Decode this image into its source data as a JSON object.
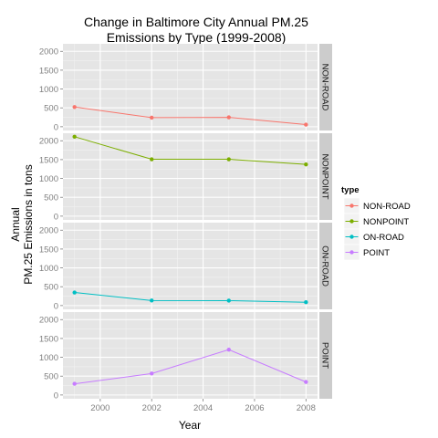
{
  "chart_data": {
    "type": "line",
    "title_line1": "Change in Baltimore City Annual PM.25",
    "title_line2": "Emissions by Type (1999-2008)",
    "xlabel": "Year",
    "ylabel_line1": "Annual",
    "ylabel_line2": "PM.25 Emissions in tons",
    "x": [
      1999,
      2002,
      2005,
      2008
    ],
    "xlim": [
      1998.55,
      2008.45
    ],
    "xticks": [
      2000,
      2002,
      2004,
      2006,
      2008
    ],
    "ylim": [
      -100,
      2200
    ],
    "yticks": [
      0,
      500,
      1000,
      1500,
      2000
    ],
    "grid": true,
    "facet": "rows",
    "legend": {
      "title": "type",
      "placement": "right"
    },
    "series": [
      {
        "name": "NON-ROAD",
        "color": "#F8766D",
        "values": [
          522.9,
          240.8,
          248.9,
          55.8
        ]
      },
      {
        "name": "NONPOINT",
        "color": "#7CAE00",
        "values": [
          2107.6,
          1509.5,
          1509.5,
          1373.2
        ]
      },
      {
        "name": "ON-ROAD",
        "color": "#00BFC4",
        "values": [
          346.8,
          134.3,
          130.4,
          88.3
        ]
      },
      {
        "name": "POINT",
        "color": "#C77CFF",
        "values": [
          296.8,
          569.3,
          1202.5,
          344.98
        ]
      }
    ]
  }
}
